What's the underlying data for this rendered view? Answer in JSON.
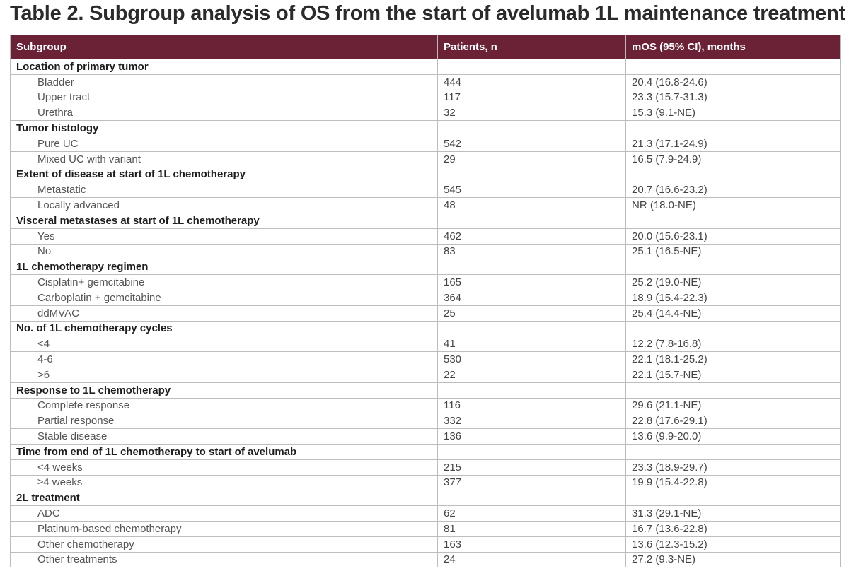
{
  "title": "Table 2. Subgroup analysis of OS from the start of avelumab 1L maintenance treatment",
  "table": {
    "headers": [
      "Subgroup",
      "Patients, n",
      "mOS (95% CI), months"
    ],
    "rows": [
      {
        "type": "group",
        "subgroup": "Location of primary tumor",
        "patients": "",
        "mos": ""
      },
      {
        "type": "item",
        "subgroup": "Bladder",
        "patients": "444",
        "mos": "20.4 (16.8-24.6)"
      },
      {
        "type": "item",
        "subgroup": "Upper tract",
        "patients": "117",
        "mos": "23.3 (15.7-31.3)"
      },
      {
        "type": "item",
        "subgroup": "Urethra",
        "patients": "32",
        "mos": "15.3 (9.1-NE)"
      },
      {
        "type": "group",
        "subgroup": "Tumor histology",
        "patients": "",
        "mos": ""
      },
      {
        "type": "item",
        "subgroup": "Pure UC",
        "patients": "542",
        "mos": "21.3 (17.1-24.9)"
      },
      {
        "type": "item",
        "subgroup": "Mixed UC with variant",
        "patients": "29",
        "mos": "16.5 (7.9-24.9)"
      },
      {
        "type": "group",
        "subgroup": "Extent of disease at start of 1L chemotherapy",
        "patients": "",
        "mos": ""
      },
      {
        "type": "item",
        "subgroup": "Metastatic",
        "patients": "545",
        "mos": "20.7 (16.6-23.2)"
      },
      {
        "type": "item",
        "subgroup": "Locally advanced",
        "patients": "48",
        "mos": "NR (18.0-NE)"
      },
      {
        "type": "group",
        "subgroup": "Visceral metastases at start of 1L chemotherapy",
        "patients": "",
        "mos": ""
      },
      {
        "type": "item",
        "subgroup": "Yes",
        "patients": "462",
        "mos": "20.0 (15.6-23.1)"
      },
      {
        "type": "item",
        "subgroup": "No",
        "patients": "83",
        "mos": "25.1 (16.5-NE)"
      },
      {
        "type": "group",
        "subgroup": "1L chemotherapy regimen",
        "patients": "",
        "mos": ""
      },
      {
        "type": "item",
        "subgroup": "Cisplatin+ gemcitabine",
        "patients": "165",
        "mos": "25.2 (19.0-NE)"
      },
      {
        "type": "item",
        "subgroup": "Carboplatin + gemcitabine",
        "patients": "364",
        "mos": "18.9 (15.4-22.3)"
      },
      {
        "type": "item",
        "subgroup": "ddMVAC",
        "patients": "25",
        "mos": "25.4 (14.4-NE)"
      },
      {
        "type": "group",
        "subgroup": "No. of 1L chemotherapy cycles",
        "patients": "",
        "mos": ""
      },
      {
        "type": "item",
        "subgroup": "<4",
        "patients": "41",
        "mos": "12.2 (7.8-16.8)"
      },
      {
        "type": "item",
        "subgroup": "4-6",
        "patients": "530",
        "mos": "22.1 (18.1-25.2)"
      },
      {
        "type": "item",
        "subgroup": ">6",
        "patients": "22",
        "mos": "22.1 (15.7-NE)"
      },
      {
        "type": "group",
        "subgroup": "Response to 1L chemotherapy",
        "patients": "",
        "mos": ""
      },
      {
        "type": "item",
        "subgroup": "Complete response",
        "patients": "116",
        "mos": "29.6 (21.1-NE)"
      },
      {
        "type": "item",
        "subgroup": "Partial response",
        "patients": "332",
        "mos": "22.8 (17.6-29.1)"
      },
      {
        "type": "item",
        "subgroup": "Stable disease",
        "patients": "136",
        "mos": "13.6 (9.9-20.0)"
      },
      {
        "type": "group",
        "subgroup": "Time from end of 1L chemotherapy to start of avelumab",
        "patients": "",
        "mos": ""
      },
      {
        "type": "item",
        "subgroup": "<4 weeks",
        "patients": "215",
        "mos": "23.3 (18.9-29.7)"
      },
      {
        "type": "item",
        "subgroup": "≥4 weeks",
        "patients": "377",
        "mos": "19.9 (15.4-22.8)"
      },
      {
        "type": "group",
        "subgroup": "2L treatment",
        "patients": "",
        "mos": ""
      },
      {
        "type": "item",
        "subgroup": "ADC",
        "patients": "62",
        "mos": "31.3 (29.1-NE)"
      },
      {
        "type": "item",
        "subgroup": "Platinum-based chemotherapy",
        "patients": "81",
        "mos": "16.7 (13.6-22.8)"
      },
      {
        "type": "item",
        "subgroup": "Other chemotherapy",
        "patients": "163",
        "mos": "13.6 (12.3-15.2)"
      },
      {
        "type": "item",
        "subgroup": "Other treatments",
        "patients": "24",
        "mos": "27.2 (9.3-NE)"
      }
    ]
  },
  "colors": {
    "header_background": "#6b2136",
    "header_text": "#ffffff",
    "title_text": "#2b2b2b",
    "border": "#bdbdbd"
  }
}
